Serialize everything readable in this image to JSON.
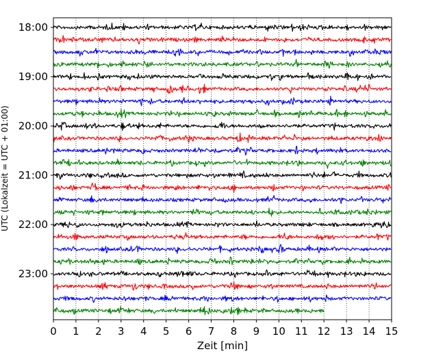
{
  "chart_data": {
    "type": "line",
    "title": "",
    "xlabel": "Zeit  [min]",
    "ylabel": "UTC (Lokalzeit = UTC + 01:00)",
    "xlim": [
      0,
      15
    ],
    "x_ticks": [
      0,
      1,
      2,
      3,
      4,
      5,
      6,
      7,
      8,
      9,
      10,
      11,
      12,
      13,
      14,
      15
    ],
    "y_tick_labels": [
      "18:00",
      "19:00",
      "20:00",
      "21:00",
      "22:00",
      "23:00"
    ],
    "grid": "vertical dotted lines at each minute",
    "trace_interval_minutes": 15,
    "color_cycle": [
      "#000000",
      "#ff0000",
      "#0000ff",
      "#008000"
    ],
    "series": [
      {
        "start": "18:00",
        "duration_min": 15
      },
      {
        "start": "18:15",
        "duration_min": 15
      },
      {
        "start": "18:30",
        "duration_min": 15
      },
      {
        "start": "18:45",
        "duration_min": 15
      },
      {
        "start": "19:00",
        "duration_min": 15
      },
      {
        "start": "19:15",
        "duration_min": 15
      },
      {
        "start": "19:30",
        "duration_min": 15
      },
      {
        "start": "19:45",
        "duration_min": 15
      },
      {
        "start": "20:00",
        "duration_min": 15
      },
      {
        "start": "20:15",
        "duration_min": 15
      },
      {
        "start": "20:30",
        "duration_min": 15
      },
      {
        "start": "20:45",
        "duration_min": 15
      },
      {
        "start": "21:00",
        "duration_min": 15
      },
      {
        "start": "21:15",
        "duration_min": 15
      },
      {
        "start": "21:30",
        "duration_min": 15
      },
      {
        "start": "21:45",
        "duration_min": 15
      },
      {
        "start": "22:00",
        "duration_min": 15
      },
      {
        "start": "22:15",
        "duration_min": 15
      },
      {
        "start": "22:30",
        "duration_min": 15
      },
      {
        "start": "22:45",
        "duration_min": 15
      },
      {
        "start": "23:00",
        "duration_min": 15
      },
      {
        "start": "23:15",
        "duration_min": 15
      },
      {
        "start": "23:30",
        "duration_min": 15
      },
      {
        "start": "23:45",
        "duration_min": 12
      }
    ]
  }
}
